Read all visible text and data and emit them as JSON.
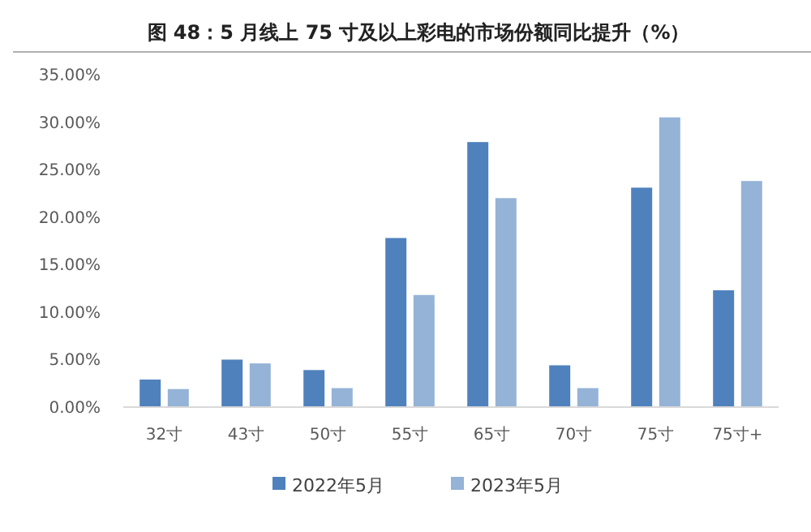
{
  "chart_data": {
    "type": "bar",
    "title": "图 48：5 月线上 75 寸及以上彩电的市场份额同比提升（%）",
    "categories": [
      "32寸",
      "43寸",
      "50寸",
      "55寸",
      "65寸",
      "70寸",
      "75寸",
      "75寸+"
    ],
    "series": [
      {
        "name": "2022年5月",
        "color": "#4f81bd",
        "values": [
          2.9,
          5.0,
          3.9,
          17.8,
          27.9,
          4.4,
          23.1,
          12.3
        ]
      },
      {
        "name": "2023年5月",
        "color": "#95b3d7",
        "values": [
          1.9,
          4.6,
          2.0,
          11.8,
          22.0,
          2.0,
          30.5,
          23.8
        ]
      }
    ],
    "ylim": [
      0,
      35
    ],
    "yticks": [
      {
        "value": 0,
        "label": "0.00%"
      },
      {
        "value": 5,
        "label": "5.00%"
      },
      {
        "value": 10,
        "label": "10.00%"
      },
      {
        "value": 15,
        "label": "15.00%"
      },
      {
        "value": 20,
        "label": "20.00%"
      },
      {
        "value": 25,
        "label": "25.00%"
      },
      {
        "value": 30,
        "label": "30.00%"
      },
      {
        "value": 35,
        "label": "35.00%"
      }
    ],
    "grid": false,
    "legend": "bottom"
  }
}
